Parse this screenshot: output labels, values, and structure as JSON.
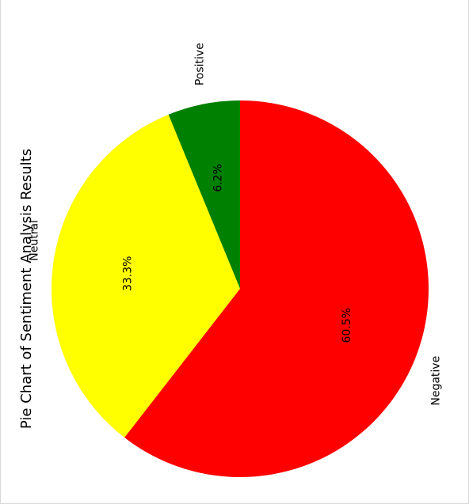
{
  "chart_data": {
    "type": "pie",
    "title": "Pie Chart of Sentiment Analysis Results",
    "categories": [
      "Positive",
      "Neutral",
      "Negative"
    ],
    "values": [
      6.2,
      33.3,
      60.5
    ],
    "value_labels": [
      "6.2%",
      "33.3%",
      "60.5%"
    ],
    "colors": [
      "#008000",
      "#ffff00",
      "#ff0000"
    ],
    "legend": "none"
  }
}
